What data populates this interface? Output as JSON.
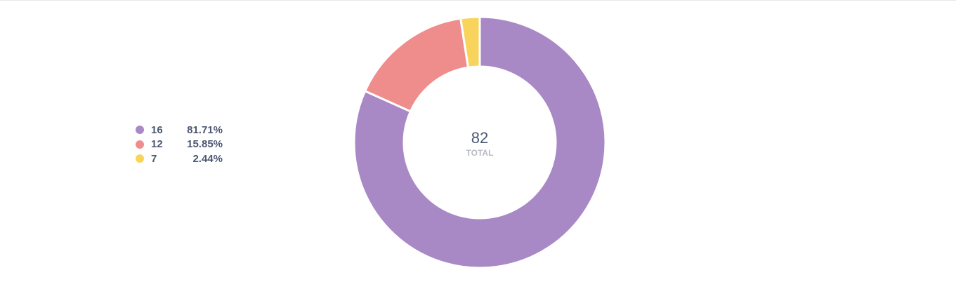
{
  "chart_data": {
    "type": "pie",
    "categories": [
      "16",
      "12",
      "7"
    ],
    "values": [
      67,
      13,
      2
    ],
    "percentages": [
      "81.71%",
      "15.85%",
      "2.44%"
    ],
    "colors": [
      "#a989c5",
      "#ef8c8c",
      "#f9d45c"
    ],
    "total": "82",
    "total_label": "TOTAL",
    "legend_position": "left"
  }
}
